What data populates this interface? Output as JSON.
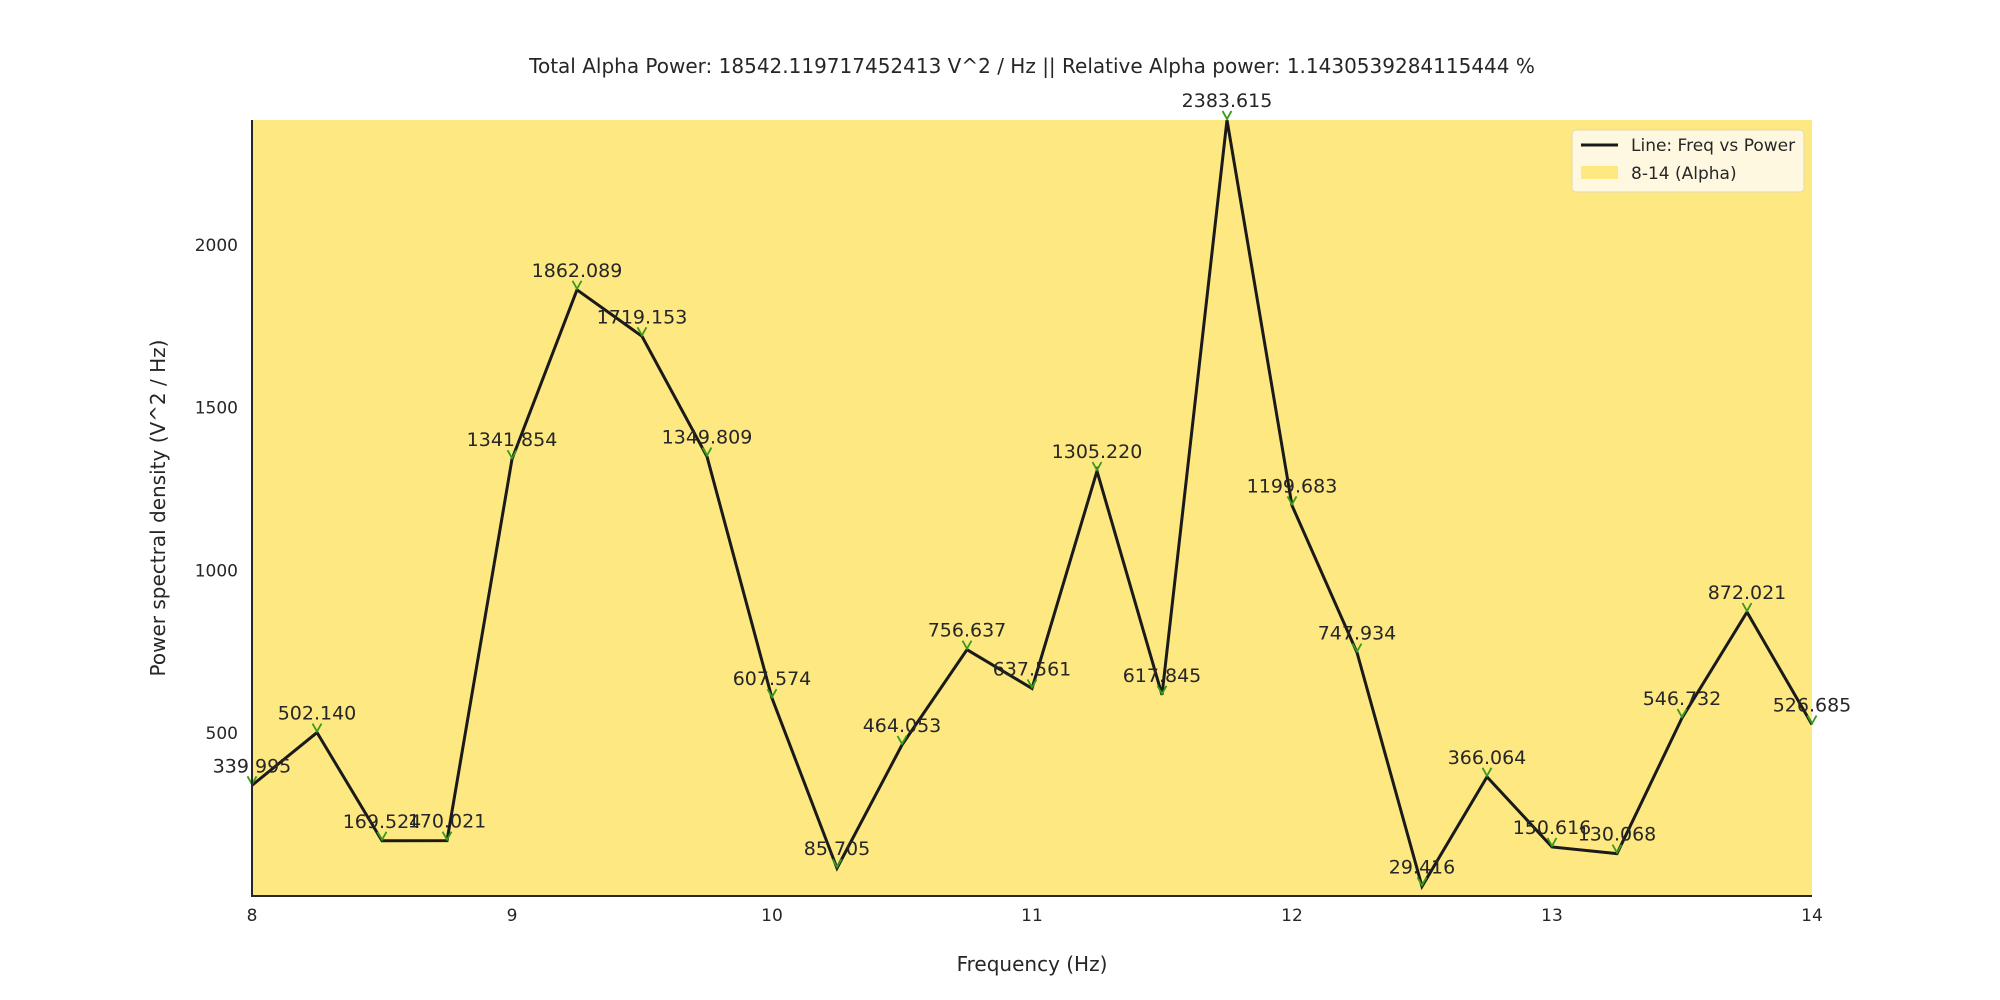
{
  "chart_data": {
    "type": "line",
    "title": "Total Alpha Power: 18542.119717452413 V^2 / Hz || Relative Alpha power: 1.1430539284115444 %",
    "xlabel": "Frequency (Hz)",
    "ylabel": "Power spectral density (V^2 / Hz)",
    "xlim": [
      8,
      14
    ],
    "ylim": [
      0,
      2383.615
    ],
    "xticks": [
      8,
      9,
      10,
      11,
      12,
      13,
      14
    ],
    "yticks": [
      500,
      1000,
      1500,
      2000
    ],
    "grid": false,
    "legend_position": "top-right",
    "shaded_band": {
      "label": "8-14 (Alpha)",
      "x_range": [
        8,
        14
      ],
      "color": "#fde882"
    },
    "series": [
      {
        "name": "Line: Freq vs Power",
        "color": "#1a1a1a",
        "marker_color": "#3a9a1a",
        "x": [
          8,
          8.25,
          8.5,
          8.75,
          9,
          9.25,
          9.5,
          9.75,
          10,
          10.25,
          10.5,
          10.75,
          11,
          11.25,
          11.5,
          11.75,
          12,
          12.25,
          12.5,
          12.75,
          13,
          13.25,
          13.5,
          13.75,
          14
        ],
        "y": [
          339.995,
          502.14,
          169.524,
          170.021,
          1341.854,
          1862.089,
          1719.153,
          1349.809,
          607.574,
          85.705,
          464.053,
          756.637,
          637.561,
          1305.22,
          617.845,
          2383.615,
          1199.683,
          747.934,
          29.416,
          366.064,
          150.616,
          130.068,
          546.732,
          872.021,
          526.685
        ],
        "labels": [
          "339.995",
          "502.140",
          "169.524",
          "170.021",
          "1341.854",
          "1862.089",
          "1719.153",
          "1349.809",
          "607.574",
          "85.705",
          "464.053",
          "756.637",
          "637.561",
          "1305.220",
          "617.845",
          "2383.615",
          "1199.683",
          "747.934",
          "29.416",
          "366.064",
          "150.616",
          "130.068",
          "546.732",
          "872.021",
          "526.685"
        ]
      }
    ]
  }
}
